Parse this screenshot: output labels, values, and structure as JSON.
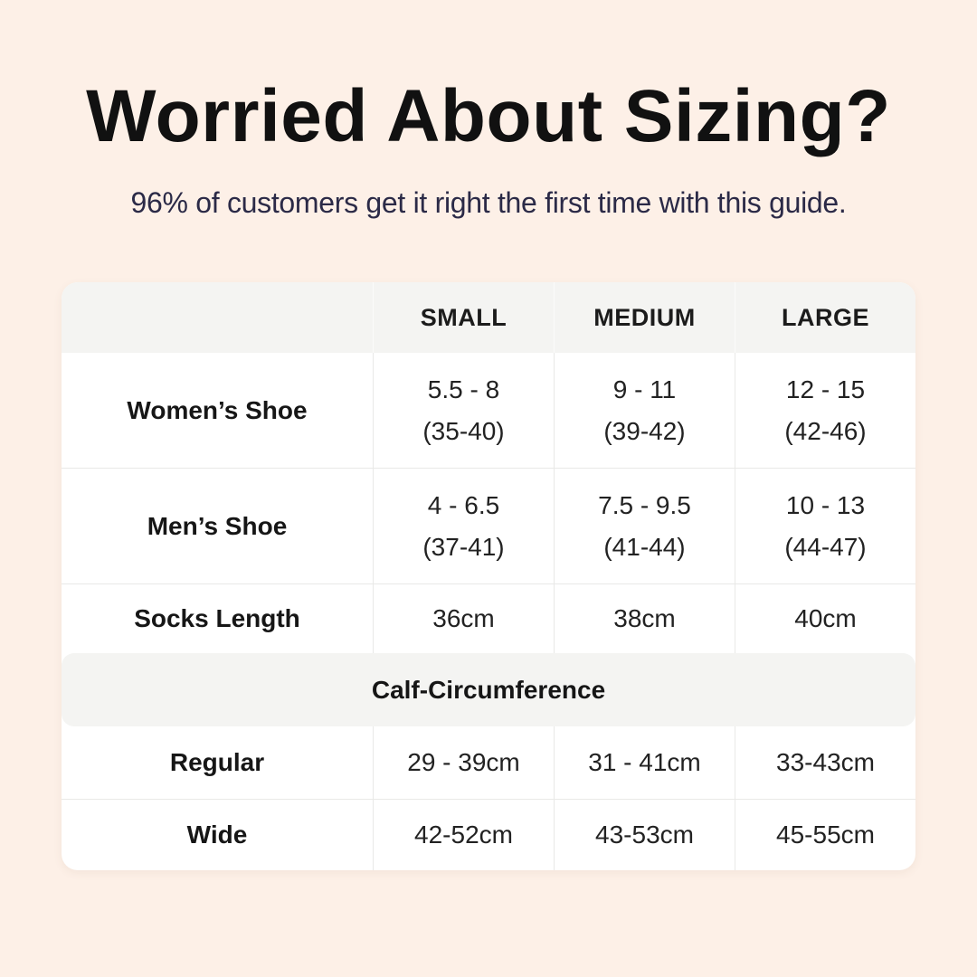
{
  "colors": {
    "background": "#fdf0e7",
    "card": "#ffffff",
    "band": "#f4f4f2",
    "divider": "#e9e9e7",
    "title_text": "#111111",
    "subtitle_text": "#2b2a47",
    "table_text": "#1f1f1f"
  },
  "header": {
    "title": "Worried About Sizing?",
    "subtitle": "96% of customers get it right the first time with this guide."
  },
  "table": {
    "column_headers": [
      "SMALL",
      "MEDIUM",
      "LARGE"
    ],
    "shoe_rows": [
      {
        "label": "Women’s Shoe",
        "cells": [
          [
            "5.5 - 8",
            "(35-40)"
          ],
          [
            "9 - 11",
            "(39-42)"
          ],
          [
            "12 - 15",
            "(42-46)"
          ]
        ]
      },
      {
        "label": "Men’s Shoe",
        "cells": [
          [
            "4 - 6.5",
            "(37-41)"
          ],
          [
            "7.5 - 9.5",
            "(41-44)"
          ],
          [
            "10 - 13",
            "(44-47)"
          ]
        ]
      }
    ],
    "socks_row": {
      "label": "Socks Length",
      "cells": [
        "36cm",
        "38cm",
        "40cm"
      ]
    },
    "section_header": "Calf-Circumference",
    "calf_rows": [
      {
        "label": "Regular",
        "cells": [
          "29 - 39cm",
          "31 - 41cm",
          "33-43cm"
        ]
      },
      {
        "label": "Wide",
        "cells": [
          "42-52cm",
          "43-53cm",
          "45-55cm"
        ]
      }
    ]
  },
  "chart_data": {
    "type": "table",
    "title": "Worried About Sizing?",
    "subtitle": "96% of customers get it right the first time with this guide.",
    "columns": [
      "",
      "SMALL",
      "MEDIUM",
      "LARGE"
    ],
    "rows": [
      [
        "Women’s Shoe",
        "5.5 - 8 (35-40)",
        "9 - 11 (39-42)",
        "12 - 15 (42-46)"
      ],
      [
        "Men’s Shoe",
        "4 - 6.5 (37-41)",
        "7.5 - 9.5 (41-44)",
        "10 - 13 (44-47)"
      ],
      [
        "Socks Length",
        "36cm",
        "38cm",
        "40cm"
      ],
      [
        "Calf-Circumference",
        "",
        "",
        ""
      ],
      [
        "Regular",
        "29 - 39cm",
        "31 - 41cm",
        "33-43cm"
      ],
      [
        "Wide",
        "42-52cm",
        "43-53cm",
        "45-55cm"
      ]
    ]
  }
}
